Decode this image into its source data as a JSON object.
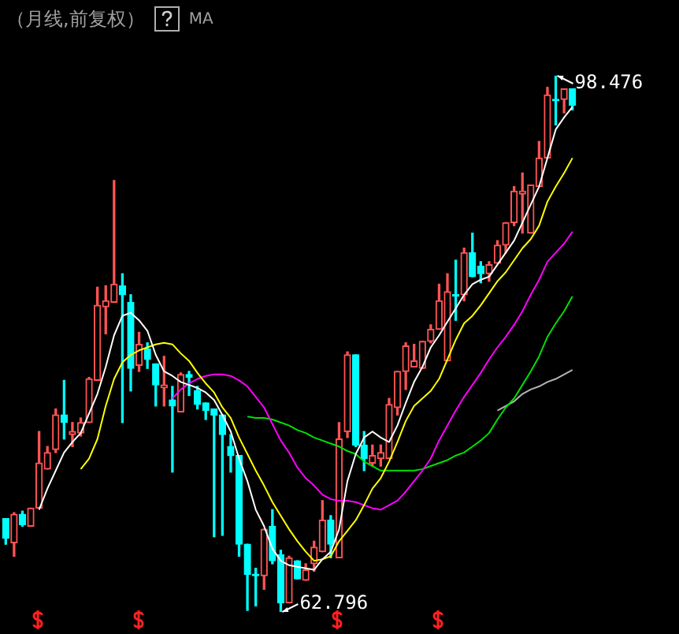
{
  "chart_data": {
    "type": "candlestick",
    "title": "（月线,前复权）",
    "subtitle": "MA",
    "categories": [
      null,
      null,
      null,
      null,
      null,
      null,
      null,
      null,
      null,
      null,
      null,
      null,
      null,
      null,
      null,
      null,
      null,
      null,
      null,
      null,
      null,
      null,
      null,
      null,
      null,
      null,
      null,
      null,
      null,
      null,
      null,
      null,
      null,
      null,
      null,
      null,
      null,
      null,
      null,
      null,
      null,
      null,
      null,
      null,
      null,
      null,
      null,
      null,
      null,
      null,
      null,
      null,
      null,
      null,
      null,
      null,
      null,
      null,
      null,
      null,
      null,
      null,
      null,
      null,
      null,
      null,
      null,
      null,
      null
    ],
    "ohlc": [
      [
        69.0,
        69.0,
        67.3,
        67.7
      ],
      [
        67.4,
        69.4,
        66.5,
        69.3
      ],
      [
        69.3,
        69.5,
        68.5,
        68.6
      ],
      [
        68.5,
        69.7,
        68.5,
        69.7
      ],
      [
        69.7,
        74.8,
        69.7,
        72.7
      ],
      [
        72.3,
        73.8,
        72.3,
        73.4
      ],
      [
        73.6,
        76.3,
        73.4,
        75.9
      ],
      [
        75.9,
        78.2,
        74.3,
        75.4
      ],
      [
        74.6,
        75.4,
        73.8,
        74.8
      ],
      [
        74.7,
        75.7,
        74.5,
        75.4
      ],
      [
        75.4,
        78.4,
        75.4,
        78.3
      ],
      [
        78.2,
        84.4,
        78.2,
        83.2
      ],
      [
        83.1,
        84.5,
        81.3,
        83.5
      ],
      [
        83.4,
        91.5,
        83.4,
        84.6
      ],
      [
        84.5,
        85.3,
        75.4,
        83.9
      ],
      [
        83.4,
        83.9,
        77.5,
        79.0
      ],
      [
        79.2,
        81.4,
        78.8,
        80.6
      ],
      [
        80.3,
        80.7,
        79.0,
        79.6
      ],
      [
        79.3,
        79.3,
        76.5,
        77.9
      ],
      [
        77.7,
        79.8,
        76.5,
        77.9
      ],
      [
        76.9,
        77.8,
        72.1,
        76.5
      ],
      [
        76.1,
        78.7,
        76.1,
        78.6
      ],
      [
        78.6,
        78.8,
        77.2,
        78.4
      ],
      [
        77.5,
        77.8,
        76.3,
        76.6
      ],
      [
        76.7,
        76.7,
        75.6,
        76.2
      ],
      [
        76.3,
        76.3,
        67.8,
        75.9
      ],
      [
        75.9,
        75.9,
        67.9,
        74.6
      ],
      [
        73.8,
        74.6,
        72.1,
        73.2
      ],
      [
        73.2,
        73.2,
        66.5,
        67.3
      ],
      [
        67.3,
        67.3,
        62.9,
        65.3
      ],
      [
        65.3,
        65.7,
        63.2,
        65.2
      ],
      [
        65.2,
        68.3,
        64.3,
        68.3
      ],
      [
        68.5,
        69.6,
        66.0,
        66.2
      ],
      [
        66.6,
        66.9,
        62.796,
        63.4
      ],
      [
        63.4,
        66.5,
        63.4,
        66.4
      ],
      [
        66.2,
        66.2,
        65.0,
        65.0
      ],
      [
        64.9,
        66.0,
        64.9,
        65.6
      ],
      [
        66.0,
        67.5,
        65.5,
        67.1
      ],
      [
        66.8,
        70.2,
        66.8,
        68.9
      ],
      [
        68.9,
        69.2,
        66.4,
        67.3
      ],
      [
        66.4,
        75.4,
        66.4,
        74.3
      ],
      [
        74.8,
        80.1,
        74.4,
        79.9
      ],
      [
        79.9,
        79.9,
        73.8,
        73.9
      ],
      [
        73.9,
        74.8,
        72.2,
        73.0
      ],
      [
        72.7,
        73.9,
        72.5,
        73.2
      ],
      [
        73.0,
        73.9,
        72.5,
        73.4
      ],
      [
        73.0,
        77.0,
        73.0,
        76.6
      ],
      [
        76.4,
        78.8,
        75.9,
        78.8
      ],
      [
        78.8,
        80.7,
        77.6,
        80.5
      ],
      [
        79.1,
        80.6,
        79.1,
        79.5
      ],
      [
        79.0,
        80.8,
        79.0,
        80.8
      ],
      [
        80.8,
        81.9,
        80.7,
        81.6
      ],
      [
        81.6,
        84.6,
        81.6,
        83.5
      ],
      [
        79.5,
        85.3,
        79.5,
        84.1
      ],
      [
        83.9,
        86.2,
        82.2,
        83.8
      ],
      [
        83.9,
        87.0,
        83.5,
        86.7
      ],
      [
        86.7,
        88.0,
        85.1,
        85.1
      ],
      [
        85.8,
        86.1,
        84.7,
        85.3
      ],
      [
        85.3,
        86.1,
        84.8,
        85.9
      ],
      [
        86.0,
        87.5,
        86.0,
        87.2
      ],
      [
        87.2,
        88.7,
        86.7,
        88.7
      ],
      [
        88.7,
        91.1,
        88.5,
        90.8
      ],
      [
        90.6,
        92.0,
        88.0,
        90.8
      ],
      [
        88.0,
        91.2,
        88.0,
        91.2
      ],
      [
        91.1,
        94.1,
        91.1,
        93.0
      ],
      [
        93.0,
        97.7,
        93.0,
        97.2
      ],
      [
        96.9,
        98.476,
        95.2,
        96.8
      ],
      [
        96.9,
        97.6,
        96.0,
        97.6
      ],
      [
        97.6,
        97.6,
        96.2,
        96.5
      ]
    ],
    "colors": [
      "#00ffff",
      "#ff5454",
      "#00ffff",
      "#ff5454",
      "#ff5454",
      "#ff5454",
      "#ff5454",
      "#00ffff",
      "#ff5454",
      "#ff5454",
      "#ff5454",
      "#ff5454",
      "#ff5454",
      "#ff5454",
      "#00ffff",
      "#00ffff",
      "#ff5454",
      "#00ffff",
      "#00ffff",
      "#ff5454",
      "#00ffff",
      "#ff5454",
      "#00ffff",
      "#00ffff",
      "#00ffff",
      "#00ffff",
      "#00ffff",
      "#00ffff",
      "#00ffff",
      "#00ffff",
      "#00ffff",
      "#ff5454",
      "#00ffff",
      "#00ffff",
      "#ff5454",
      "#00ffff",
      "#ff5454",
      "#ff5454",
      "#ff5454",
      "#00ffff",
      "#ff5454",
      "#ff5454",
      "#00ffff",
      "#00ffff",
      "#ff5454",
      "#ff5454",
      "#ff5454",
      "#ff5454",
      "#ff5454",
      "#ff5454",
      "#ff5454",
      "#ff5454",
      "#ff5454",
      "#ff5454",
      "#00ffff",
      "#ff5454",
      "#00ffff",
      "#00ffff",
      "#ff5454",
      "#ff5454",
      "#ff5454",
      "#ff5454",
      "#ff5454",
      "#ff5454",
      "#ff5454",
      "#ff5454",
      "#00ffff",
      "#ff5454",
      "#00ffff"
    ],
    "series": [
      {
        "type": "line",
        "color": "#ffffff",
        "values": [
          null,
          null,
          null,
          null,
          69.6,
          71.0,
          72.2,
          73.4,
          74.1,
          74.7,
          76.0,
          77.3,
          79.1,
          81.2,
          82.5,
          82.7,
          82.2,
          81.5,
          79.9,
          78.8,
          78.5,
          78.1,
          77.9,
          77.7,
          77.4,
          76.9,
          75.9,
          74.8,
          73.0,
          71.5,
          69.6,
          68.5,
          67.0,
          66.2,
          65.9,
          65.8,
          65.7,
          65.6,
          66.3,
          66.8,
          68.3,
          71.5,
          73.3,
          74.4,
          74.8,
          74.4,
          74.1,
          75.2,
          76.7,
          78.1,
          79.1,
          80.4,
          81.2,
          82.1,
          83.0,
          83.9,
          84.6,
          84.9,
          85.1,
          85.9,
          86.7,
          87.5,
          88.7,
          89.9,
          91.1,
          93.0,
          94.9,
          95.7,
          96.4
        ]
      },
      {
        "type": "line",
        "color": "#ffff00",
        "values": [
          null,
          null,
          null,
          null,
          null,
          null,
          null,
          null,
          null,
          72.3,
          73.0,
          74.3,
          76.5,
          78.3,
          79.4,
          79.9,
          80.2,
          80.4,
          80.6,
          80.7,
          80.6,
          80.0,
          79.5,
          78.7,
          78.0,
          77.4,
          76.4,
          75.7,
          74.4,
          73.3,
          72.2,
          71.2,
          70.1,
          69.2,
          68.3,
          67.5,
          66.8,
          66.2,
          66.3,
          66.5,
          67.5,
          68.2,
          68.9,
          69.9,
          71.0,
          71.7,
          72.8,
          74.1,
          75.5,
          76.5,
          77.0,
          77.5,
          78.3,
          79.6,
          80.9,
          82.0,
          82.5,
          83.2,
          84.0,
          84.8,
          85.4,
          86.2,
          87.0,
          87.6,
          88.5,
          90.1,
          91.1,
          92.0,
          93.0
        ]
      },
      {
        "type": "line",
        "color": "#ff00ff",
        "values": [
          null,
          null,
          null,
          null,
          null,
          null,
          null,
          null,
          null,
          null,
          null,
          null,
          null,
          null,
          null,
          null,
          null,
          null,
          null,
          null,
          77.0,
          77.6,
          78.0,
          78.3,
          78.5,
          78.6,
          78.6,
          78.5,
          78.2,
          77.8,
          77.1,
          76.4,
          75.3,
          74.2,
          73.4,
          72.4,
          71.7,
          71.2,
          70.6,
          70.3,
          70.2,
          70.2,
          70.1,
          69.9,
          69.7,
          69.6,
          69.9,
          70.2,
          70.8,
          71.5,
          72.2,
          73.0,
          74.2,
          75.2,
          76.2,
          77.1,
          77.9,
          78.7,
          79.6,
          80.4,
          81.1,
          81.9,
          82.8,
          83.9,
          84.9,
          86.1,
          86.7,
          87.3,
          88.1
        ]
      },
      {
        "type": "line",
        "color": "#00e000",
        "values": [
          null,
          null,
          null,
          null,
          null,
          null,
          null,
          null,
          null,
          null,
          null,
          null,
          null,
          null,
          null,
          null,
          null,
          null,
          null,
          null,
          null,
          null,
          null,
          null,
          null,
          null,
          null,
          null,
          null,
          75.8,
          75.7,
          75.7,
          75.6,
          75.4,
          75.2,
          74.9,
          74.7,
          74.4,
          74.2,
          74.0,
          73.8,
          73.5,
          73.3,
          72.8,
          72.5,
          72.2,
          72.2,
          72.2,
          72.2,
          72.2,
          72.3,
          72.5,
          72.7,
          72.9,
          73.2,
          73.4,
          73.8,
          74.2,
          74.7,
          75.6,
          76.4,
          77.0,
          77.9,
          78.8,
          79.8,
          81.1,
          82.0,
          82.8,
          83.8
        ]
      },
      {
        "type": "line",
        "color": "#b4b4b4",
        "values": [
          null,
          null,
          null,
          null,
          null,
          null,
          null,
          null,
          null,
          null,
          null,
          null,
          null,
          null,
          null,
          null,
          null,
          null,
          null,
          null,
          null,
          null,
          null,
          null,
          null,
          null,
          null,
          null,
          null,
          null,
          null,
          null,
          null,
          null,
          null,
          null,
          null,
          null,
          null,
          null,
          null,
          null,
          null,
          null,
          null,
          null,
          null,
          null,
          null,
          null,
          null,
          null,
          null,
          null,
          null,
          null,
          null,
          null,
          null,
          76.2,
          76.5,
          76.8,
          77.3,
          77.6,
          77.8,
          78.1,
          78.3,
          78.6,
          78.9
        ]
      }
    ],
    "annotations": [
      "98.476",
      "62.796"
    ]
  }
}
